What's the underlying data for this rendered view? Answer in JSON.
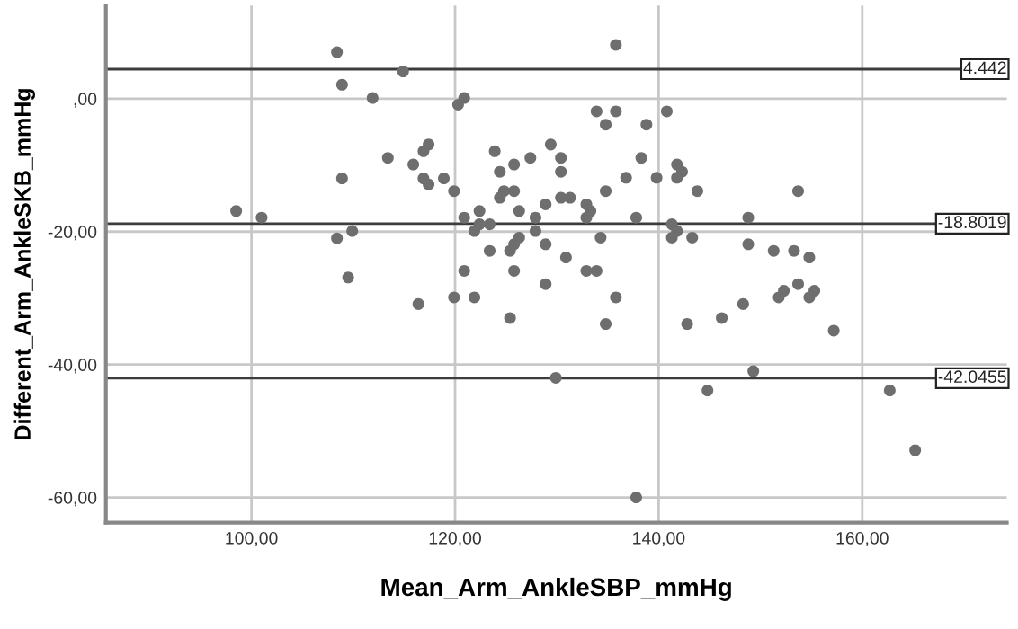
{
  "chart_data": {
    "type": "scatter",
    "xlabel": "Mean_Arm_AnkleSBP_mmHg",
    "ylabel": "Different_Arm_AnkleSKB_mmHg",
    "x": [
      98.5,
      101.0,
      108.4,
      108.9,
      111.9,
      114.9,
      120.3,
      120.9,
      113.4,
      115.9,
      116.9,
      117.4,
      108.9,
      116.9,
      117.4,
      118.9,
      119.9,
      123.9,
      124.4,
      125.8,
      124.8,
      125.8,
      124.4,
      126.3,
      122.4,
      120.9,
      122.4,
      123.4,
      121.9,
      108.4,
      109.9,
      123.4,
      125.4,
      125.8,
      126.3,
      109.5,
      120.9,
      125.8,
      116.4,
      119.9,
      121.9,
      135.8,
      133.9,
      135.8,
      134.8,
      138.8,
      140.8,
      129.4,
      127.4,
      130.4,
      130.4,
      138.3,
      136.8,
      139.8,
      141.8,
      142.3,
      141.8,
      143.8,
      153.7,
      134.8,
      128.9,
      130.4,
      131.3,
      132.9,
      133.3,
      132.9,
      127.9,
      137.8,
      148.8,
      141.3,
      141.8,
      127.9,
      141.3,
      143.3,
      134.3,
      128.9,
      148.8,
      151.3,
      153.3,
      154.8,
      130.9,
      132.9,
      133.9,
      128.9,
      153.7,
      152.3,
      151.8,
      155.3,
      154.8,
      135.8,
      148.3,
      125.4,
      134.8,
      142.8,
      146.2,
      157.2,
      129.9,
      149.3,
      144.8,
      162.7,
      165.2,
      137.8
    ],
    "values": [
      -16.9,
      -17.9,
      7.0,
      2.1,
      0.1,
      4.1,
      -0.9,
      0.1,
      -8.9,
      -9.9,
      -7.9,
      -6.9,
      -12.0,
      -12.0,
      -12.9,
      -12.0,
      -13.9,
      -7.9,
      -11.0,
      -9.9,
      -13.9,
      -13.9,
      -14.9,
      -16.9,
      -16.9,
      -17.9,
      -18.9,
      -18.9,
      -19.9,
      -21.0,
      -19.9,
      -22.9,
      -22.9,
      -21.9,
      -20.9,
      -26.9,
      -25.9,
      -25.9,
      -30.9,
      -29.9,
      -29.9,
      8.1,
      -1.9,
      -1.9,
      -3.9,
      -3.9,
      -1.9,
      -6.9,
      -8.9,
      -8.9,
      -11.0,
      -8.9,
      -11.9,
      -11.9,
      -9.9,
      -11.0,
      -11.9,
      -13.9,
      -13.9,
      -13.9,
      -15.9,
      -14.9,
      -14.9,
      -15.9,
      -16.9,
      -17.9,
      -17.9,
      -17.9,
      -17.9,
      -18.9,
      -19.9,
      -19.9,
      -20.9,
      -20.9,
      -20.9,
      -21.9,
      -21.9,
      -22.9,
      -22.9,
      -23.9,
      -23.9,
      -25.9,
      -25.9,
      -27.9,
      -27.9,
      -28.9,
      -29.9,
      -28.9,
      -29.9,
      -29.9,
      -30.9,
      -33.0,
      -33.9,
      -33.9,
      -33.0,
      -34.9,
      -42.0,
      -41.0,
      -43.9,
      -43.9,
      -52.9,
      -60.0
    ],
    "color": "#6e6e6e",
    "marker": "circle",
    "xlim": [
      85.7,
      174.2
    ],
    "ylim": [
      -63.8,
      14.0
    ],
    "xticks": [
      {
        "value": 100,
        "label": "100,00"
      },
      {
        "value": 120,
        "label": "120,00"
      },
      {
        "value": 140,
        "label": "140,00"
      },
      {
        "value": 160,
        "label": "160,00"
      }
    ],
    "yticks": [
      {
        "value": 0,
        "label": ",00"
      },
      {
        "value": -20,
        "label": "-20,00"
      },
      {
        "value": -40,
        "label": "-40,00"
      },
      {
        "value": -60,
        "label": "-60,00"
      }
    ],
    "grid": true,
    "ref_lines": [
      {
        "axis": "y",
        "value": 4.442,
        "label": "4.442",
        "color": "#3c3c3c"
      },
      {
        "axis": "y",
        "value": -18.8019,
        "label": "-18.8019",
        "color": "#3c3c3c"
      },
      {
        "axis": "y",
        "value": -42.0455,
        "label": "-42.0455",
        "color": "#3c3c3c"
      }
    ]
  }
}
